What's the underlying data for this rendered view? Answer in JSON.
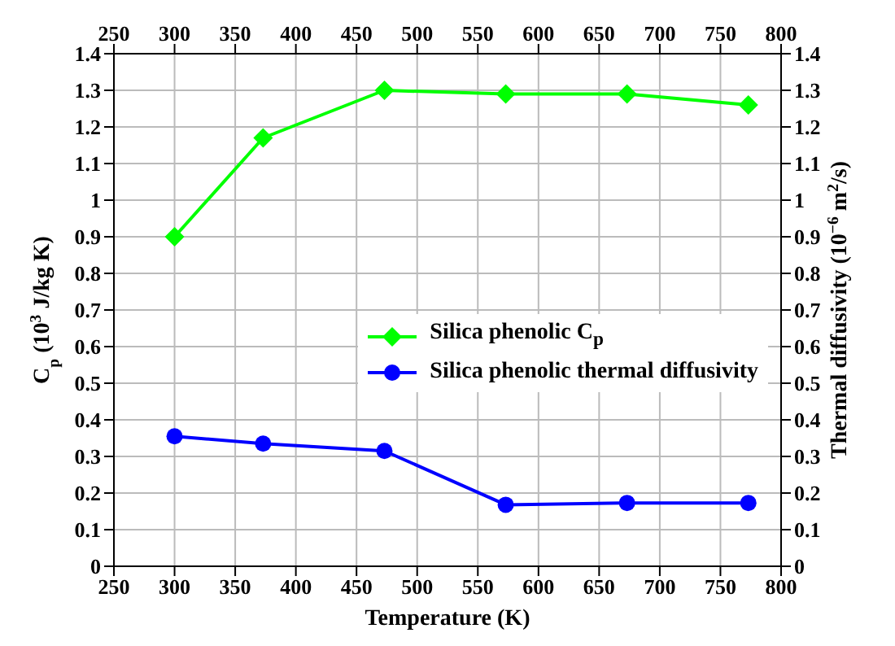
{
  "chart_data": {
    "type": "line",
    "x": [
      300,
      373,
      473,
      573,
      673,
      773
    ],
    "series": [
      {
        "name": "Silica phenolic C$_{p}$",
        "color": "#00ff00",
        "marker": "diamond",
        "values": [
          0.9,
          1.17,
          1.3,
          1.29,
          1.29,
          1.26
        ]
      },
      {
        "name": "Silica phenolic thermal diffusivity",
        "color": "#0000ff",
        "marker": "circle",
        "axis": "y2",
        "values": [
          0.355,
          0.335,
          0.315,
          0.168,
          0.173,
          0.173
        ]
      }
    ],
    "xlabel": "Temperature (K)",
    "ylabel": "C$_{p}$ (10$^{3}$ J/kg K)",
    "y2label": "Thermal diffusivity (10$^{−6}$ m$^{2}$/s)",
    "xlim": [
      250,
      800
    ],
    "xticks": [
      250,
      300,
      350,
      400,
      450,
      500,
      550,
      600,
      650,
      700,
      750,
      800
    ],
    "x2lim": [
      250,
      800
    ],
    "x2ticks": [
      250,
      300,
      350,
      400,
      450,
      500,
      550,
      600,
      650,
      700,
      750,
      800
    ],
    "ylim": [
      0,
      1.4
    ],
    "yticks": [
      0,
      0.1,
      0.2,
      0.3,
      0.4,
      0.5,
      0.6,
      0.7,
      0.8,
      0.9,
      1,
      1.1,
      1.2,
      1.3,
      1.4
    ],
    "y2lim": [
      0,
      1.4
    ],
    "y2ticks": [
      0,
      0.1,
      0.2,
      0.3,
      0.4,
      0.5,
      0.6,
      0.7,
      0.8,
      0.9,
      1,
      1.1,
      1.2,
      1.3,
      1.4
    ],
    "grid": true,
    "legend": "right",
    "line_style": "solid"
  }
}
